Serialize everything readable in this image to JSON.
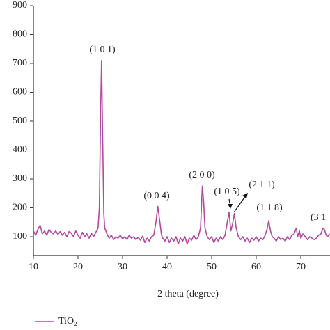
{
  "chart_data": {
    "type": "line",
    "x_label": "2 theta (degree)",
    "xlim": [
      10,
      76.5
    ],
    "ylim": [
      35,
      900
    ],
    "xticks": [
      10,
      20,
      30,
      40,
      50,
      60,
      70
    ],
    "yticks": [
      100,
      200,
      300,
      400,
      500,
      600,
      700,
      800,
      900
    ],
    "legend": "bottom-left",
    "annotations": [
      "(1 0 1)",
      "(0 0 4)",
      "(2 0 0)",
      "(1 0 5)",
      "(2 1 1)",
      "(1 1 8)",
      "(3 1"
    ],
    "x": [
      10,
      10.5,
      11,
      11.5,
      12,
      12.5,
      13,
      13.5,
      14,
      14.5,
      15,
      15.5,
      16,
      16.5,
      17,
      17.5,
      18,
      18.5,
      19,
      19.5,
      20,
      20.5,
      21,
      21.5,
      22,
      22.5,
      23,
      23.5,
      24,
      24.5,
      24.8,
      25.1,
      25.3,
      25.5,
      25.8,
      26,
      26.5,
      27,
      27.5,
      28,
      28.5,
      29,
      29.5,
      30,
      30.5,
      31,
      31.5,
      32,
      32.5,
      33,
      33.5,
      34,
      34.5,
      35,
      35.5,
      36,
      36.5,
      37,
      37.5,
      37.9,
      38.3,
      38.7,
      39,
      39.5,
      40,
      40.5,
      41,
      41.5,
      42,
      42.5,
      43,
      43.5,
      44,
      44.5,
      45,
      45.5,
      46,
      46.5,
      47,
      47.5,
      47.9,
      48.2,
      48.5,
      49,
      49.5,
      50,
      50.5,
      51,
      51.5,
      52,
      52.5,
      53,
      53.5,
      53.9,
      54.3,
      54.7,
      55.1,
      55.5,
      56,
      56.5,
      57,
      57.5,
      58,
      58.5,
      59,
      59.5,
      60,
      60.5,
      61,
      61.5,
      62,
      62.5,
      62.8,
      63.2,
      63.6,
      64,
      64.5,
      65,
      65.5,
      66,
      66.5,
      67,
      67.5,
      68,
      68.5,
      69,
      69.3,
      69.7,
      70,
      70.5,
      71,
      71.5,
      72,
      72.5,
      73,
      73.5,
      74,
      74.5,
      75,
      75.3,
      75.7,
      76,
      76.5
    ],
    "series": [
      {
        "name": "TiO₂",
        "color": "#b4479f",
        "values": [
          120,
          105,
          125,
          140,
          110,
          120,
          105,
          125,
          115,
          110,
          120,
          108,
          118,
          105,
          115,
          100,
          118,
          112,
          100,
          120,
          105,
          95,
          115,
          100,
          110,
          95,
          112,
          100,
          115,
          130,
          200,
          550,
          710,
          480,
          180,
          130,
          110,
          95,
          105,
          90,
          100,
          95,
          105,
          92,
          100,
          90,
          105,
          95,
          100,
          90,
          98,
          88,
          102,
          80,
          95,
          85,
          100,
          105,
          150,
          205,
          160,
          110,
          95,
          85,
          100,
          80,
          95,
          85,
          100,
          75,
          95,
          85,
          100,
          75,
          95,
          88,
          105,
          90,
          100,
          130,
          275,
          220,
          130,
          100,
          90,
          100,
          80,
          95,
          85,
          100,
          90,
          105,
          150,
          185,
          120,
          145,
          180,
          130,
          100,
          90,
          100,
          85,
          95,
          80,
          95,
          88,
          100,
          85,
          95,
          90,
          105,
          130,
          155,
          120,
          100,
          95,
          85,
          100,
          90,
          95,
          85,
          100,
          90,
          105,
          110,
          130,
          100,
          120,
          95,
          110,
          100,
          90,
          100,
          95,
          90,
          95,
          105,
          110,
          130,
          125,
          105,
          100,
          110
        ]
      }
    ]
  }
}
